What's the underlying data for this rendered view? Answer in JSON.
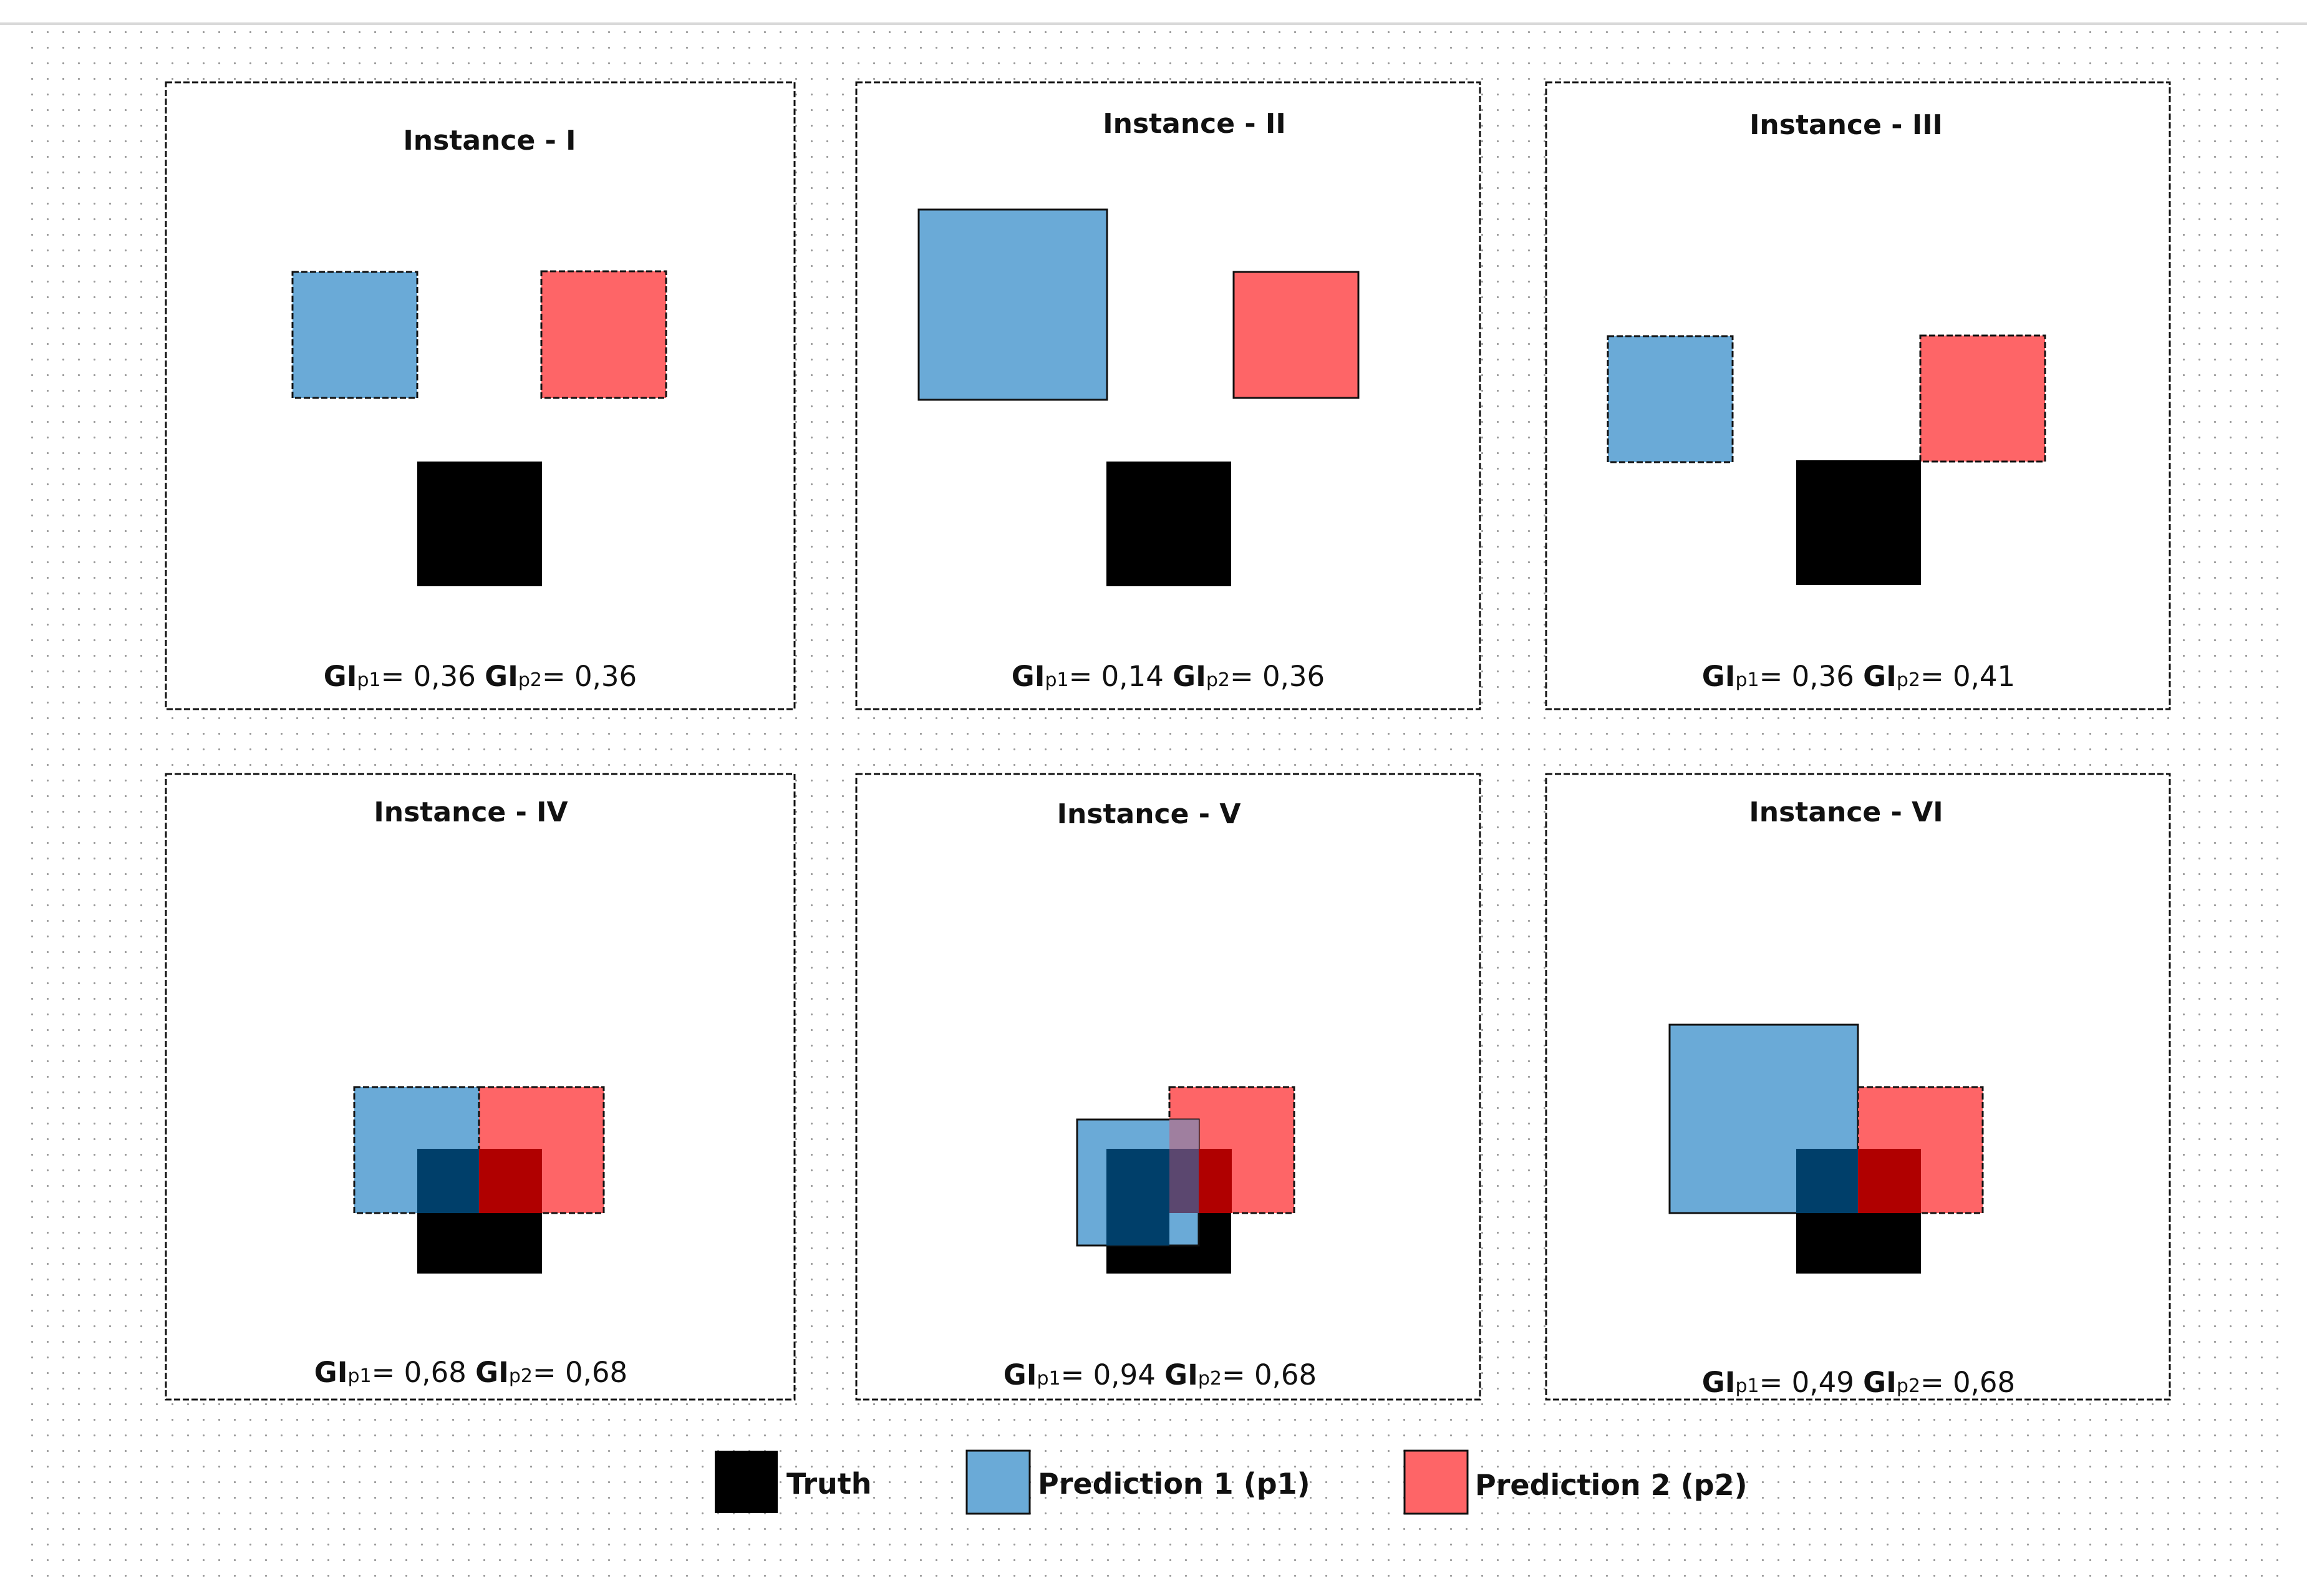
{
  "colors": {
    "truth": "#000000",
    "prediction_1": "#6aaad7",
    "prediction_2": "#fe6567",
    "overlap_truth_p1": "#003f6a",
    "overlap_truth_p2": "#b00000",
    "overlap_p1_p2": "#9f7f9f",
    "grid_dots": "#9a9a9a",
    "panel_border": "#111111"
  },
  "panels": [
    {
      "title": "Instance -  I",
      "metric": {
        "p1_prefix": "GI",
        "p1_sub": "p1",
        "p1_value": "=  0,36",
        "p2_prefix": "GI",
        "p2_sub": "p2",
        "p2_value": "= 0,36"
      }
    },
    {
      "title": "Instance - II",
      "metric": {
        "p1_prefix": "GI",
        "p1_sub": "p1",
        "p1_value": "=  0,14",
        "p2_prefix": "GI",
        "p2_sub": "p2",
        "p2_value": "= 0,36"
      }
    },
    {
      "title": "Instance -  III",
      "metric": {
        "p1_prefix": "GI",
        "p1_sub": "p1",
        "p1_value": "=  0,36",
        "p2_prefix": "GI",
        "p2_sub": "p2",
        "p2_value": "= 0,41"
      }
    },
    {
      "title": "Instance -  IV",
      "metric": {
        "p1_prefix": "GI",
        "p1_sub": "p1",
        "p1_value": "=  0,68",
        "p2_prefix": "GI",
        "p2_sub": "p2",
        "p2_value": "= 0,68"
      }
    },
    {
      "title": "Instance - V",
      "metric": {
        "p1_prefix": "GI",
        "p1_sub": "p1",
        "p1_value": "=  0,94",
        "p2_prefix": "GI",
        "p2_sub": "p2",
        "p2_value": "= 0,68"
      }
    },
    {
      "title": "Instance - VI",
      "metric": {
        "p1_prefix": "GI",
        "p1_sub": "p1",
        "p1_value": "=  0,49",
        "p2_prefix": "GI",
        "p2_sub": "p2",
        "p2_value": "= 0,68"
      }
    }
  ],
  "legend": {
    "truth_label": "Truth",
    "prediction_1_label": "Prediction 1 (p1)",
    "prediction_2_label": "Prediction 2 (p2)"
  }
}
